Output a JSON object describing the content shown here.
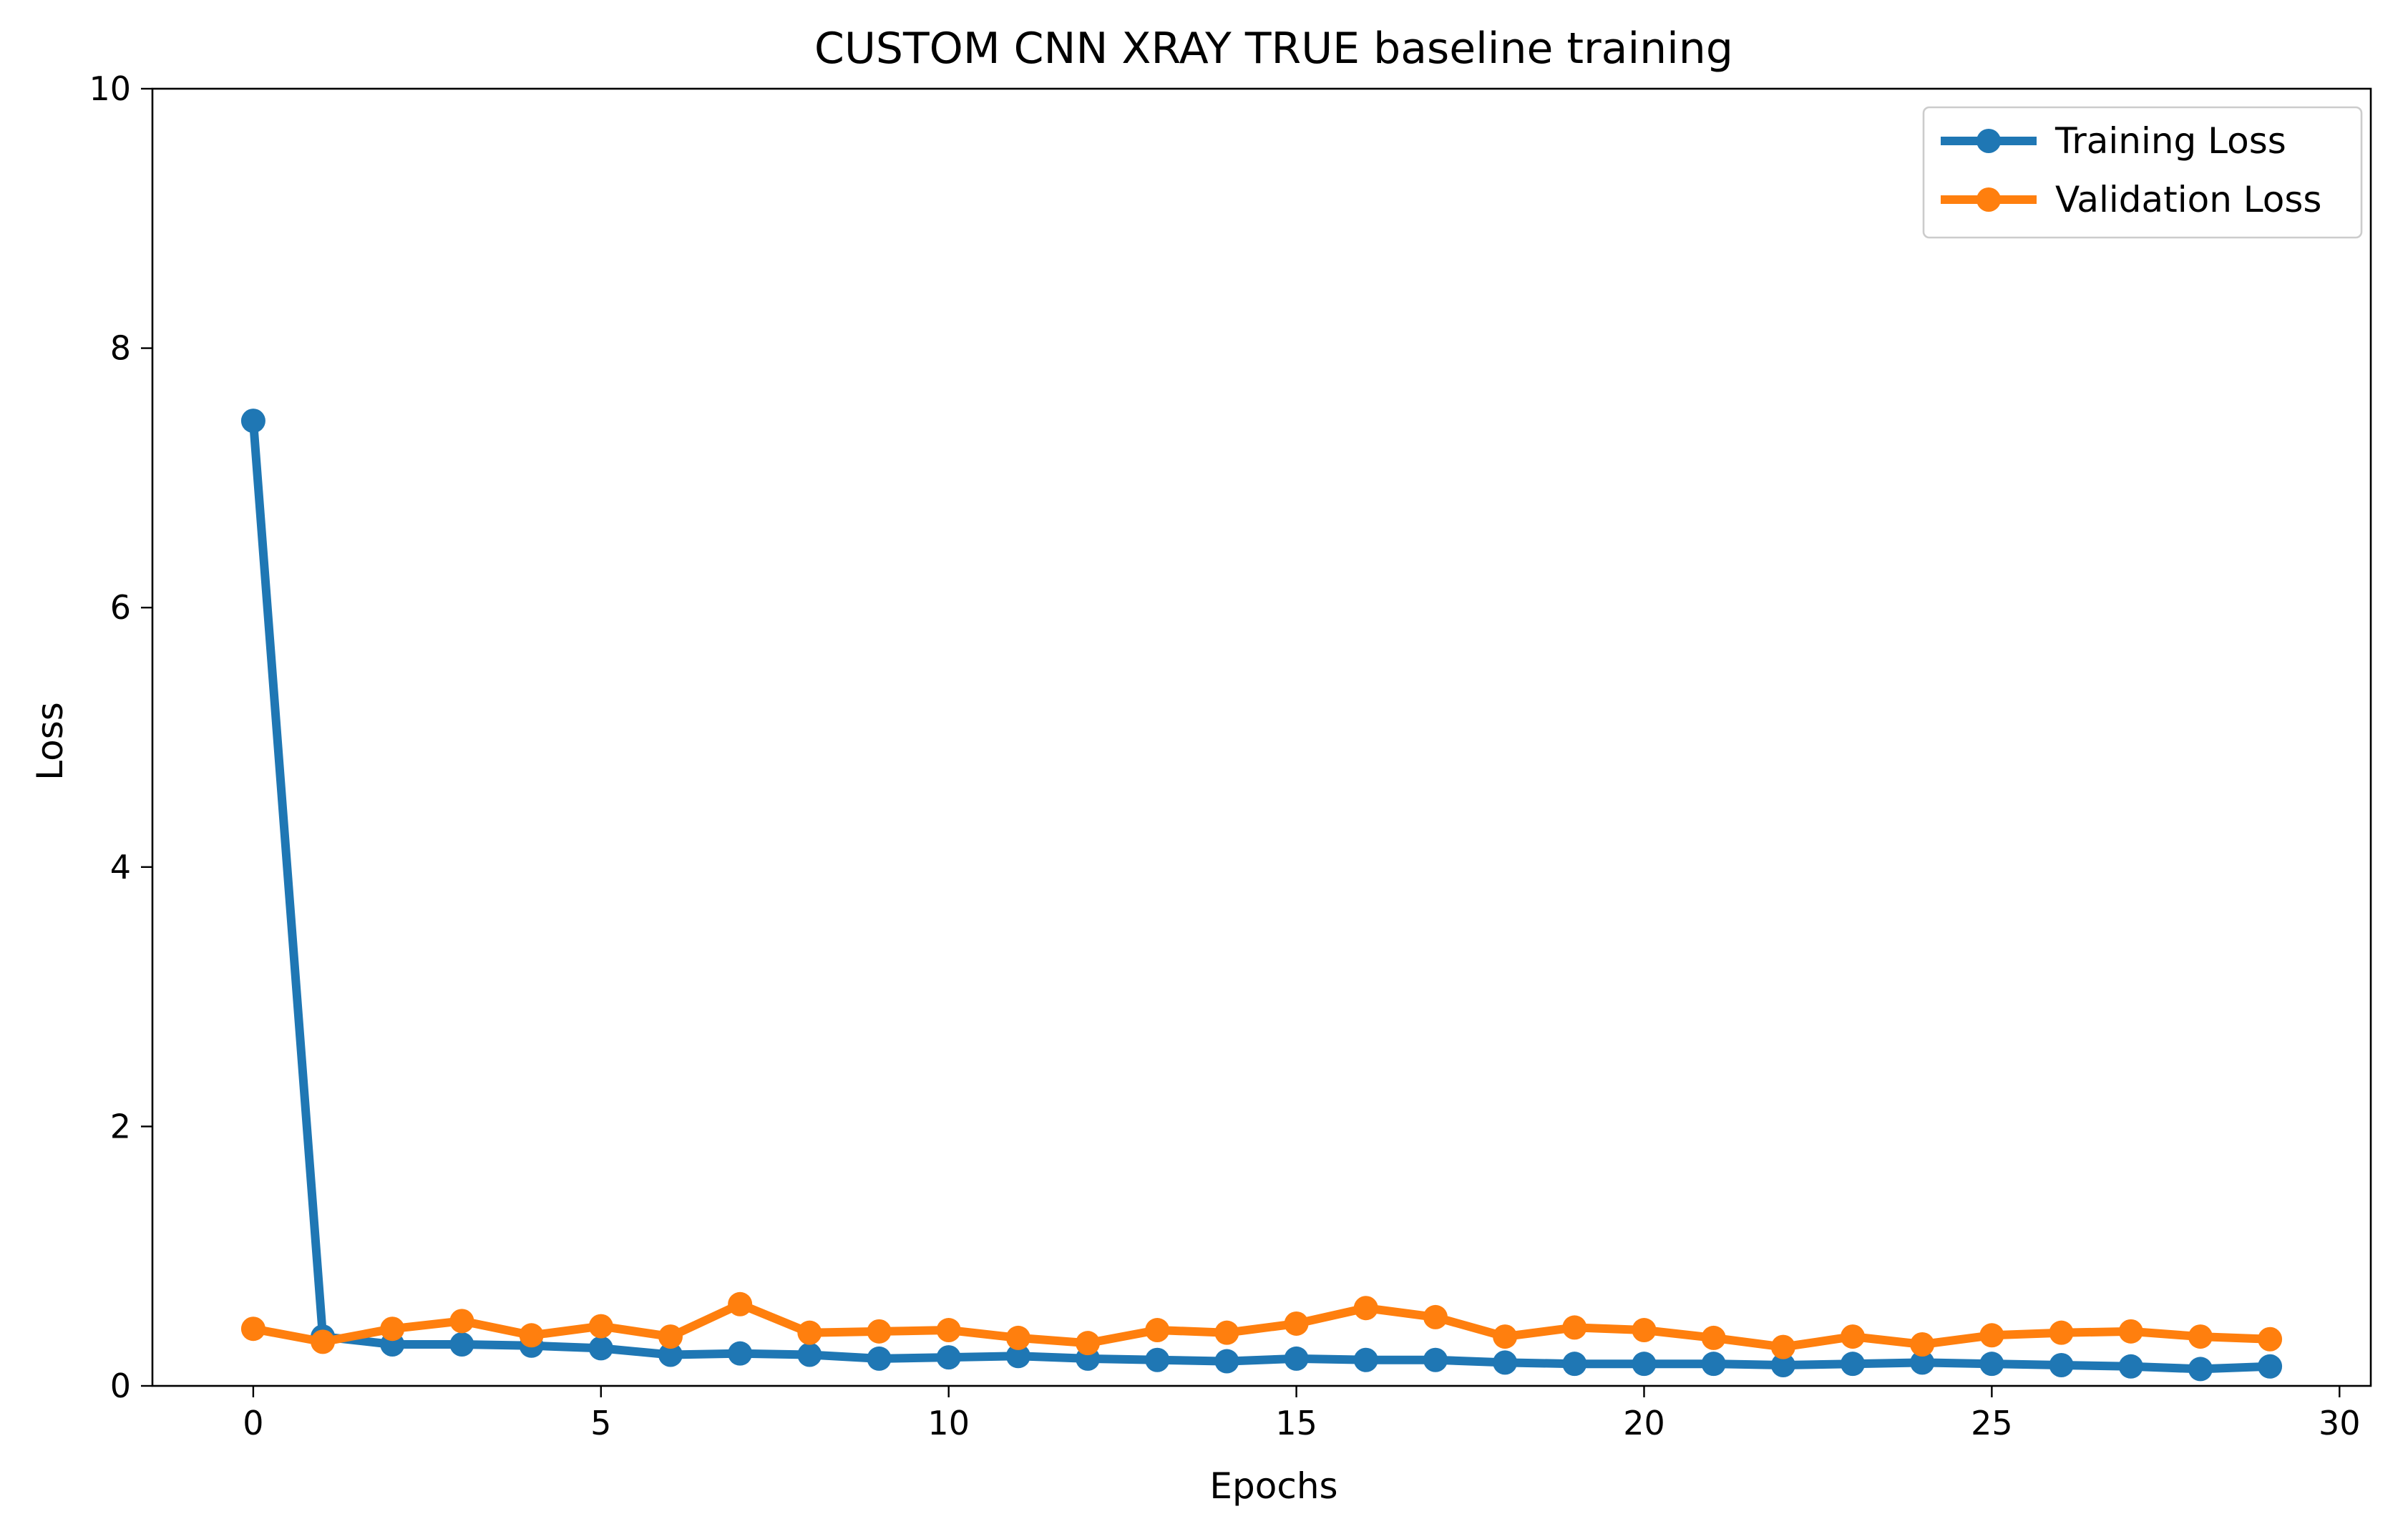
{
  "chart_data": {
    "type": "line",
    "title": "CUSTOM CNN XRAY TRUE baseline training",
    "xlabel": "Epochs",
    "ylabel": "Loss",
    "xlim": [
      -1.45,
      30.45
    ],
    "ylim": [
      0,
      10
    ],
    "x_ticks": [
      0,
      5,
      10,
      15,
      20,
      25,
      30
    ],
    "y_ticks": [
      0,
      2,
      4,
      6,
      8,
      10
    ],
    "grid": false,
    "legend_position": "top-right",
    "x": [
      0,
      1,
      2,
      3,
      4,
      5,
      6,
      7,
      8,
      9,
      10,
      11,
      12,
      13,
      14,
      15,
      16,
      17,
      18,
      19,
      20,
      21,
      22,
      23,
      24,
      25,
      26,
      27,
      28,
      29
    ],
    "series": [
      {
        "name": "Training Loss",
        "color": "#1f77b4",
        "values": [
          7.44,
          0.38,
          0.32,
          0.32,
          0.31,
          0.29,
          0.24,
          0.25,
          0.24,
          0.21,
          0.22,
          0.23,
          0.21,
          0.2,
          0.19,
          0.21,
          0.2,
          0.2,
          0.18,
          0.17,
          0.17,
          0.17,
          0.16,
          0.17,
          0.18,
          0.17,
          0.16,
          0.15,
          0.13,
          0.15
        ]
      },
      {
        "name": "Validation Loss",
        "color": "#ff7f0e",
        "values": [
          0.44,
          0.34,
          0.44,
          0.5,
          0.39,
          0.46,
          0.38,
          0.63,
          0.41,
          0.42,
          0.43,
          0.37,
          0.33,
          0.43,
          0.41,
          0.48,
          0.6,
          0.53,
          0.38,
          0.45,
          0.43,
          0.37,
          0.3,
          0.38,
          0.32,
          0.39,
          0.41,
          0.42,
          0.38,
          0.36
        ]
      }
    ]
  }
}
